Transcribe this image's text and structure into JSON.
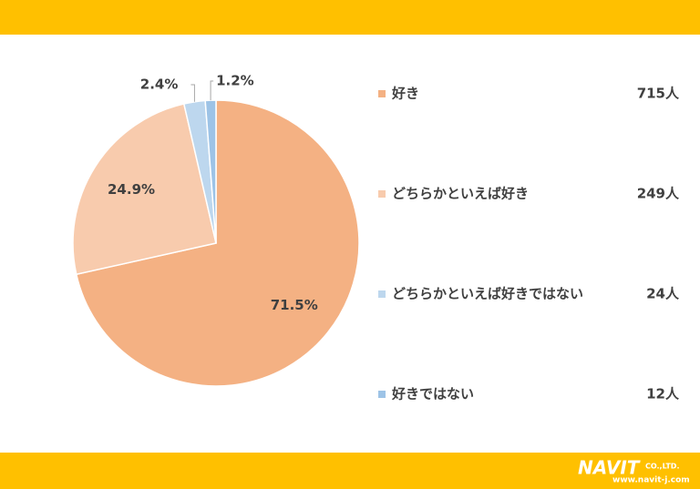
{
  "chart_data": {
    "type": "pie",
    "categories": [
      "好き",
      "どちらかといえば好き",
      "どちらかといえば好きではない",
      "好きではない"
    ],
    "values": [
      71.5,
      24.9,
      2.4,
      1.2
    ],
    "value_labels": [
      "71.5%",
      "24.9%",
      "2.4%",
      "1.2%"
    ],
    "colors": [
      "#F4B183",
      "#F8CBAD",
      "#BDD7EE",
      "#9DC3E6"
    ],
    "legend_counts": [
      "715人",
      "249人",
      "24人",
      "12人"
    ],
    "legend": "right"
  },
  "footer": {
    "logo": "NAVIT",
    "company": "CO.,LTD.",
    "url": "www.navit-j.com"
  }
}
